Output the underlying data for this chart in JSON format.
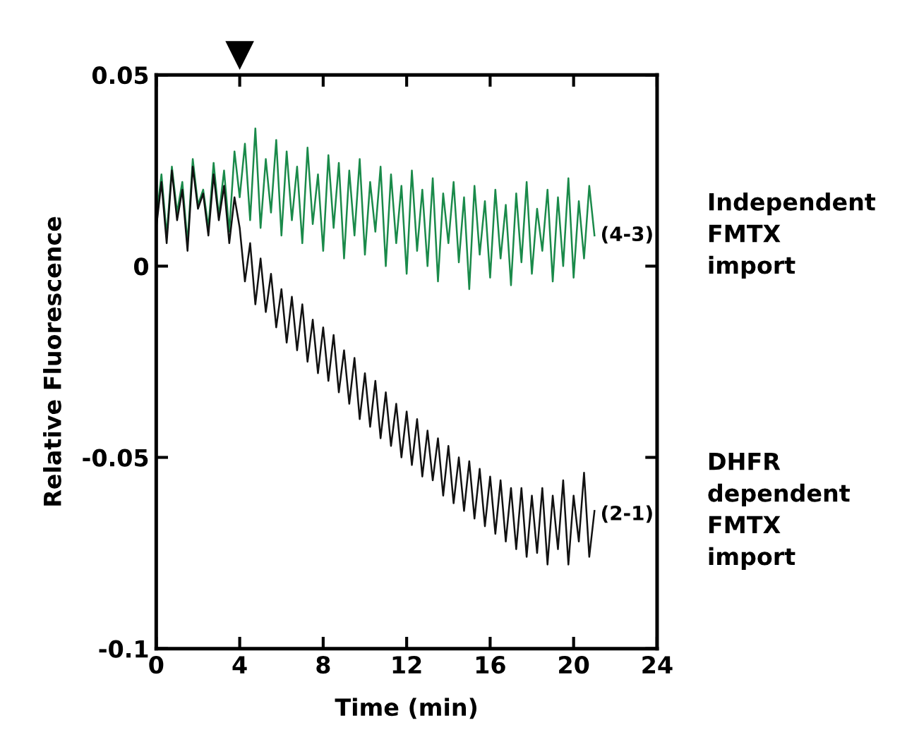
{
  "chart_data": {
    "type": "line",
    "xlabel": "Time (min)",
    "ylabel": "Relative Fluorescence",
    "xlim": [
      0,
      24
    ],
    "xticks": [
      0,
      4,
      8,
      12,
      16,
      20,
      24
    ],
    "ylim": [
      -0.1,
      0.05
    ],
    "yticks": [
      {
        "value": 0.05,
        "label": "0.05"
      },
      {
        "value": 0,
        "label": "0"
      },
      {
        "value": -0.05,
        "label": "-0.05"
      },
      {
        "value": -0.1,
        "label": "-0.1"
      }
    ],
    "grid": false,
    "legend": false,
    "marker": "none",
    "line_style": "solid",
    "x": [
      0,
      0.25,
      0.5,
      0.75,
      1,
      1.25,
      1.5,
      1.75,
      2,
      2.25,
      2.5,
      2.75,
      3,
      3.25,
      3.5,
      3.75,
      4,
      4.25,
      4.5,
      4.75,
      5,
      5.25,
      5.5,
      5.75,
      6,
      6.25,
      6.5,
      6.75,
      7,
      7.25,
      7.5,
      7.75,
      8,
      8.25,
      8.5,
      8.75,
      9,
      9.25,
      9.5,
      9.75,
      10,
      10.25,
      10.5,
      10.75,
      11,
      11.25,
      11.5,
      11.75,
      12,
      12.25,
      12.5,
      12.75,
      13,
      13.25,
      13.5,
      13.75,
      14,
      14.25,
      14.5,
      14.75,
      15,
      15.25,
      15.5,
      15.75,
      16,
      16.25,
      16.5,
      16.75,
      17,
      17.25,
      17.5,
      17.75,
      18,
      18.25,
      18.5,
      18.75,
      19,
      19.25,
      19.5,
      19.75,
      20,
      20.25,
      20.5,
      20.75,
      21
    ],
    "series": [
      {
        "name": "Independent\nFMTX\nimport",
        "color": "#1a8a4a",
        "values": [
          0.012,
          0.024,
          0.008,
          0.026,
          0.014,
          0.022,
          0.006,
          0.028,
          0.016,
          0.02,
          0.01,
          0.027,
          0.013,
          0.025,
          0.009,
          0.03,
          0.018,
          0.032,
          0.012,
          0.036,
          0.01,
          0.028,
          0.014,
          0.033,
          0.008,
          0.03,
          0.012,
          0.026,
          0.006,
          0.031,
          0.011,
          0.024,
          0.004,
          0.029,
          0.01,
          0.027,
          0.002,
          0.025,
          0.008,
          0.028,
          0.003,
          0.022,
          0.009,
          0.026,
          0.0,
          0.024,
          0.006,
          0.021,
          -0.002,
          0.025,
          0.004,
          0.02,
          0.0,
          0.023,
          -0.004,
          0.019,
          0.006,
          0.022,
          0.001,
          0.018,
          -0.006,
          0.021,
          0.003,
          0.017,
          -0.003,
          0.02,
          0.002,
          0.016,
          -0.005,
          0.019,
          0.001,
          0.022,
          -0.002,
          0.015,
          0.004,
          0.02,
          -0.004,
          0.018,
          0.0,
          0.023,
          -0.003,
          0.017,
          0.002,
          0.021,
          0.008
        ]
      },
      {
        "name": "DHFR\ndependent\nFMTX\nimport",
        "color": "#111111",
        "values": [
          0.01,
          0.022,
          0.006,
          0.025,
          0.012,
          0.02,
          0.004,
          0.026,
          0.015,
          0.019,
          0.008,
          0.024,
          0.012,
          0.021,
          0.006,
          0.018,
          0.01,
          -0.004,
          0.006,
          -0.01,
          0.002,
          -0.012,
          -0.002,
          -0.016,
          -0.006,
          -0.02,
          -0.008,
          -0.022,
          -0.01,
          -0.025,
          -0.014,
          -0.028,
          -0.016,
          -0.03,
          -0.018,
          -0.033,
          -0.022,
          -0.036,
          -0.024,
          -0.04,
          -0.028,
          -0.042,
          -0.03,
          -0.045,
          -0.033,
          -0.047,
          -0.036,
          -0.05,
          -0.038,
          -0.052,
          -0.04,
          -0.055,
          -0.043,
          -0.056,
          -0.045,
          -0.06,
          -0.047,
          -0.062,
          -0.05,
          -0.064,
          -0.051,
          -0.066,
          -0.053,
          -0.068,
          -0.055,
          -0.07,
          -0.056,
          -0.072,
          -0.058,
          -0.074,
          -0.058,
          -0.076,
          -0.06,
          -0.075,
          -0.058,
          -0.078,
          -0.06,
          -0.074,
          -0.056,
          -0.078,
          -0.06,
          -0.072,
          -0.054,
          -0.076,
          -0.064
        ]
      }
    ],
    "annotations": [
      {
        "text": "(4-3)",
        "x": 21,
        "y": 0.008
      },
      {
        "text": "(2-1)",
        "x": 21,
        "y": -0.065
      }
    ]
  }
}
